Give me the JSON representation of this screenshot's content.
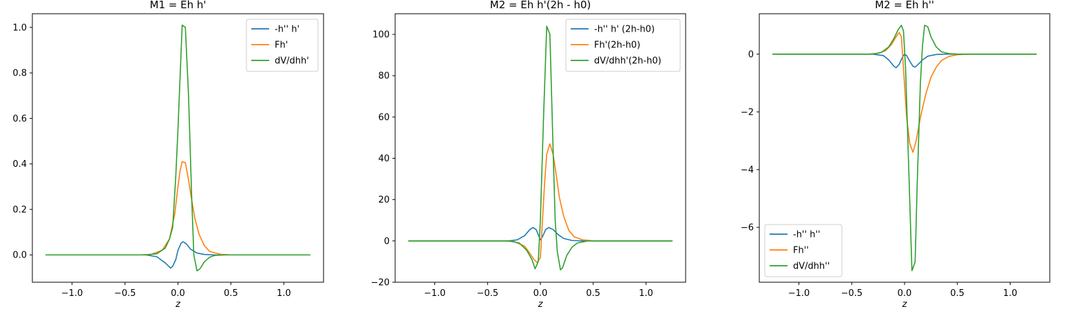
{
  "chart_data": [
    {
      "type": "line",
      "title": "M1 = Eh h'",
      "xlabel": "z",
      "ylabel": "",
      "xlim": [
        -1.375,
        1.375
      ],
      "ylim": [
        -0.12,
        1.06
      ],
      "xticks": [
        -1.0,
        -0.5,
        0.0,
        0.5,
        1.0
      ],
      "xtick_labels": [
        "−1.0",
        "−0.5",
        "0.0",
        "0.5",
        "1.0"
      ],
      "yticks": [
        0.0,
        0.2,
        0.4,
        0.6,
        0.8,
        1.0
      ],
      "ytick_labels": [
        "0.0",
        "0.2",
        "0.4",
        "0.6",
        "0.8",
        "1.0"
      ],
      "grid": false,
      "legend_position": "upper right",
      "series": [
        {
          "name": "-h'' h'",
          "color": "#1f77b4",
          "points": [
            [
              -1.25,
              0
            ],
            [
              -0.3,
              0
            ],
            [
              -0.2,
              -0.008
            ],
            [
              -0.12,
              -0.035
            ],
            [
              -0.07,
              -0.058
            ],
            [
              -0.05,
              -0.05
            ],
            [
              -0.02,
              -0.02
            ],
            [
              0.0,
              0.02
            ],
            [
              0.03,
              0.052
            ],
            [
              0.05,
              0.058
            ],
            [
              0.08,
              0.048
            ],
            [
              0.12,
              0.025
            ],
            [
              0.18,
              0.008
            ],
            [
              0.25,
              0.002
            ],
            [
              0.35,
              0
            ],
            [
              1.25,
              0
            ]
          ]
        },
        {
          "name": "Fh'",
          "color": "#ff7f0e",
          "points": [
            [
              -1.25,
              0
            ],
            [
              -0.35,
              0
            ],
            [
              -0.25,
              0.003
            ],
            [
              -0.15,
              0.02
            ],
            [
              -0.08,
              0.07
            ],
            [
              -0.03,
              0.18
            ],
            [
              0.0,
              0.3
            ],
            [
              0.02,
              0.37
            ],
            [
              0.04,
              0.41
            ],
            [
              0.07,
              0.405
            ],
            [
              0.1,
              0.33
            ],
            [
              0.13,
              0.24
            ],
            [
              0.16,
              0.16
            ],
            [
              0.2,
              0.09
            ],
            [
              0.25,
              0.04
            ],
            [
              0.3,
              0.015
            ],
            [
              0.4,
              0.003
            ],
            [
              0.5,
              0
            ],
            [
              1.25,
              0
            ]
          ]
        },
        {
          "name": "dV/dhh'",
          "color": "#2ca02c",
          "points": [
            [
              -1.25,
              0
            ],
            [
              -0.3,
              0
            ],
            [
              -0.2,
              0.005
            ],
            [
              -0.12,
              0.03
            ],
            [
              -0.08,
              0.07
            ],
            [
              -0.05,
              0.12
            ],
            [
              -0.02,
              0.35
            ],
            [
              0.0,
              0.55
            ],
            [
              0.02,
              0.78
            ],
            [
              0.04,
              1.01
            ],
            [
              0.07,
              1.0
            ],
            [
              0.1,
              0.7
            ],
            [
              0.13,
              0.25
            ],
            [
              0.15,
              0.0
            ],
            [
              0.18,
              -0.07
            ],
            [
              0.21,
              -0.06
            ],
            [
              0.25,
              -0.03
            ],
            [
              0.3,
              -0.01
            ],
            [
              0.35,
              -0.002
            ],
            [
              0.45,
              0
            ],
            [
              1.25,
              0
            ]
          ]
        }
      ]
    },
    {
      "type": "line",
      "title": "M2 = Eh h'(2h - h0)",
      "xlabel": "z",
      "ylabel": "",
      "xlim": [
        -1.375,
        1.375
      ],
      "ylim": [
        -20,
        110
      ],
      "xticks": [
        -1.0,
        -0.5,
        0.0,
        0.5,
        1.0
      ],
      "xtick_labels": [
        "−1.0",
        "−0.5",
        "0.0",
        "0.5",
        "1.0"
      ],
      "yticks": [
        -20,
        0,
        20,
        40,
        60,
        80,
        100
      ],
      "ytick_labels": [
        "−20",
        "0",
        "20",
        "40",
        "60",
        "80",
        "100"
      ],
      "grid": false,
      "legend_position": "upper right",
      "series": [
        {
          "name": "-h'' h' (2h-h0)",
          "color": "#1f77b4",
          "points": [
            [
              -1.25,
              0
            ],
            [
              -0.3,
              0
            ],
            [
              -0.22,
              0.5
            ],
            [
              -0.15,
              2.5
            ],
            [
              -0.1,
              5.5
            ],
            [
              -0.07,
              6.5
            ],
            [
              -0.04,
              5.5
            ],
            [
              -0.02,
              3
            ],
            [
              0.0,
              0.5
            ],
            [
              0.02,
              2
            ],
            [
              0.05,
              5.5
            ],
            [
              0.08,
              6.5
            ],
            [
              0.12,
              5.5
            ],
            [
              0.17,
              3
            ],
            [
              0.22,
              1.2
            ],
            [
              0.3,
              0.2
            ],
            [
              0.4,
              0
            ],
            [
              1.25,
              0
            ]
          ]
        },
        {
          "name": "Fh'(2h-h0)",
          "color": "#ff7f0e",
          "points": [
            [
              -1.25,
              0
            ],
            [
              -0.35,
              0
            ],
            [
              -0.25,
              -0.3
            ],
            [
              -0.15,
              -2.5
            ],
            [
              -0.1,
              -6
            ],
            [
              -0.06,
              -9
            ],
            [
              -0.03,
              -10.5
            ],
            [
              0.0,
              -8
            ],
            [
              0.02,
              10
            ],
            [
              0.04,
              28
            ],
            [
              0.06,
              42
            ],
            [
              0.09,
              47
            ],
            [
              0.12,
              42
            ],
            [
              0.15,
              32
            ],
            [
              0.18,
              21
            ],
            [
              0.22,
              12
            ],
            [
              0.27,
              5
            ],
            [
              0.32,
              2
            ],
            [
              0.4,
              0.5
            ],
            [
              0.5,
              0
            ],
            [
              1.25,
              0
            ]
          ]
        },
        {
          "name": "dV/dhh'(2h-h0)",
          "color": "#2ca02c",
          "points": [
            [
              -1.25,
              0
            ],
            [
              -0.3,
              0
            ],
            [
              -0.2,
              -1
            ],
            [
              -0.13,
              -4.5
            ],
            [
              -0.08,
              -9
            ],
            [
              -0.05,
              -13.5
            ],
            [
              -0.02,
              -10
            ],
            [
              0.0,
              10
            ],
            [
              0.03,
              60
            ],
            [
              0.06,
              104
            ],
            [
              0.09,
              100
            ],
            [
              0.12,
              45
            ],
            [
              0.14,
              10
            ],
            [
              0.16,
              -5
            ],
            [
              0.19,
              -14
            ],
            [
              0.21,
              -13
            ],
            [
              0.25,
              -7
            ],
            [
              0.3,
              -3
            ],
            [
              0.35,
              -1
            ],
            [
              0.45,
              0
            ],
            [
              1.25,
              0
            ]
          ]
        }
      ]
    },
    {
      "type": "line",
      "title": "M2 = Eh h''",
      "xlabel": "z",
      "ylabel": "",
      "xlim": [
        -1.375,
        1.375
      ],
      "ylim": [
        -7.9,
        1.4
      ],
      "xticks": [
        -1.0,
        -0.5,
        0.0,
        0.5,
        1.0
      ],
      "xtick_labels": [
        "−1.0",
        "−0.5",
        "0.0",
        "0.5",
        "1.0"
      ],
      "yticks": [
        -6,
        -4,
        -2,
        0
      ],
      "ytick_labels": [
        "−6",
        "−4",
        "−2",
        "0"
      ],
      "grid": false,
      "legend_position": "lower left",
      "series": [
        {
          "name": "-h'' h''",
          "color": "#1f77b4",
          "points": [
            [
              -1.25,
              0
            ],
            [
              -0.3,
              0
            ],
            [
              -0.2,
              -0.05
            ],
            [
              -0.15,
              -0.2
            ],
            [
              -0.1,
              -0.42
            ],
            [
              -0.08,
              -0.47
            ],
            [
              -0.05,
              -0.35
            ],
            [
              -0.02,
              -0.1
            ],
            [
              0.0,
              0.0
            ],
            [
              0.02,
              -0.05
            ],
            [
              0.05,
              -0.25
            ],
            [
              0.08,
              -0.42
            ],
            [
              0.1,
              -0.45
            ],
            [
              0.13,
              -0.35
            ],
            [
              0.17,
              -0.2
            ],
            [
              0.22,
              -0.07
            ],
            [
              0.3,
              -0.01
            ],
            [
              0.4,
              0
            ],
            [
              1.25,
              0
            ]
          ]
        },
        {
          "name": "Fh''",
          "color": "#ff7f0e",
          "points": [
            [
              -1.25,
              0
            ],
            [
              -0.35,
              0
            ],
            [
              -0.25,
              0.03
            ],
            [
              -0.18,
              0.12
            ],
            [
              -0.12,
              0.35
            ],
            [
              -0.08,
              0.6
            ],
            [
              -0.05,
              0.75
            ],
            [
              -0.03,
              0.6
            ],
            [
              -0.01,
              -0.5
            ],
            [
              0.02,
              -2.2
            ],
            [
              0.05,
              -3.1
            ],
            [
              0.08,
              -3.4
            ],
            [
              0.11,
              -3.0
            ],
            [
              0.15,
              -2.2
            ],
            [
              0.2,
              -1.4
            ],
            [
              0.25,
              -0.8
            ],
            [
              0.3,
              -0.45
            ],
            [
              0.35,
              -0.22
            ],
            [
              0.42,
              -0.08
            ],
            [
              0.5,
              -0.02
            ],
            [
              0.6,
              0
            ],
            [
              1.25,
              0
            ]
          ]
        },
        {
          "name": "dV/dhh''",
          "color": "#2ca02c",
          "points": [
            [
              -1.25,
              0
            ],
            [
              -0.3,
              0
            ],
            [
              -0.22,
              0.06
            ],
            [
              -0.15,
              0.25
            ],
            [
              -0.1,
              0.55
            ],
            [
              -0.06,
              0.85
            ],
            [
              -0.03,
              1.0
            ],
            [
              -0.01,
              0.8
            ],
            [
              0.01,
              -0.5
            ],
            [
              0.04,
              -4
            ],
            [
              0.07,
              -7.5
            ],
            [
              0.1,
              -7.2
            ],
            [
              0.12,
              -4.5
            ],
            [
              0.15,
              -1.0
            ],
            [
              0.17,
              0.3
            ],
            [
              0.19,
              1.0
            ],
            [
              0.22,
              0.95
            ],
            [
              0.25,
              0.6
            ],
            [
              0.3,
              0.25
            ],
            [
              0.35,
              0.08
            ],
            [
              0.42,
              0.02
            ],
            [
              0.5,
              0
            ],
            [
              1.25,
              0
            ]
          ]
        }
      ]
    }
  ]
}
